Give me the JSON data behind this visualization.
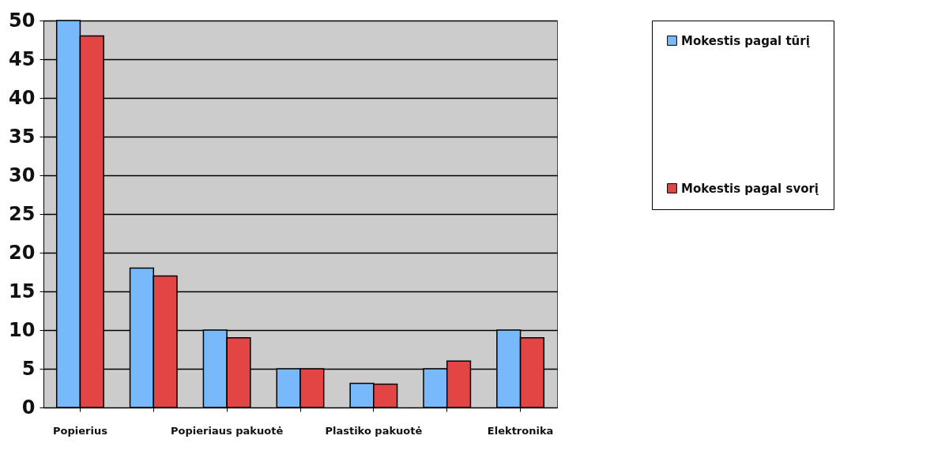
{
  "chart_data": {
    "type": "bar",
    "categories": [
      "Popierius",
      null,
      "Popieriaus pakuotė",
      null,
      "Plastiko pakuotė",
      null,
      "Elektronika"
    ],
    "series": [
      {
        "name": "Mokestis pagal tūrį",
        "color": "#77b9fb",
        "values": [
          50,
          18,
          10,
          5,
          3.1,
          5,
          10
        ]
      },
      {
        "name": "Mokestis pagal svorį",
        "color": "#e34545",
        "values": [
          48,
          17,
          9,
          5,
          3,
          6,
          9
        ]
      }
    ],
    "ylim": [
      0,
      50
    ],
    "yticks": [
      0,
      5,
      10,
      15,
      20,
      25,
      30,
      35,
      40,
      45,
      50
    ],
    "grid": "y",
    "legend": "right"
  }
}
